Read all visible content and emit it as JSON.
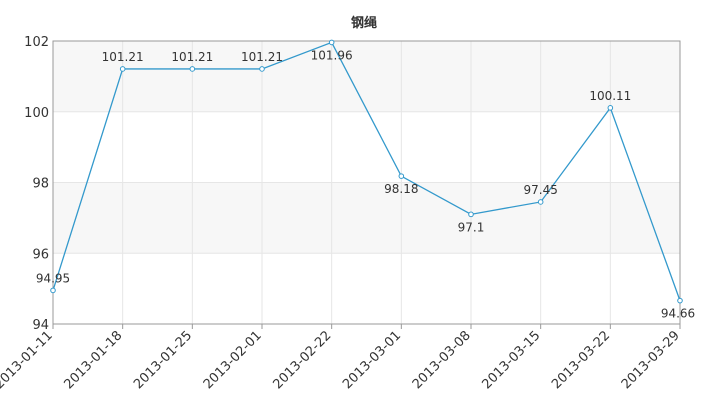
{
  "chart_data": {
    "type": "line",
    "title": "钢绳",
    "xlabel": "",
    "ylabel": "",
    "categories": [
      "2013-01-11",
      "2013-01-18",
      "2013-01-25",
      "2013-02-01",
      "2013-02-22",
      "2013-03-01",
      "2013-03-08",
      "2013-03-15",
      "2013-03-22",
      "2013-03-29"
    ],
    "series": [
      {
        "values": [
          94.95,
          101.21,
          101.21,
          101.21,
          101.96,
          98.18,
          97.1,
          97.45,
          100.11,
          94.66
        ]
      }
    ],
    "data_labels": [
      "94.95",
      "101.21",
      "101.21",
      "101.21",
      "101.96",
      "98.18",
      "97.1",
      "97.45",
      "100.11",
      "94.66"
    ],
    "ylim": [
      94,
      102
    ],
    "yticks": [
      94,
      96,
      98,
      100,
      102
    ],
    "grid": true,
    "legend": "none",
    "colors": {
      "line": "#3399cc",
      "grid": "#e6e6e6",
      "band": "#f7f7f7",
      "axis": "#999999"
    }
  }
}
